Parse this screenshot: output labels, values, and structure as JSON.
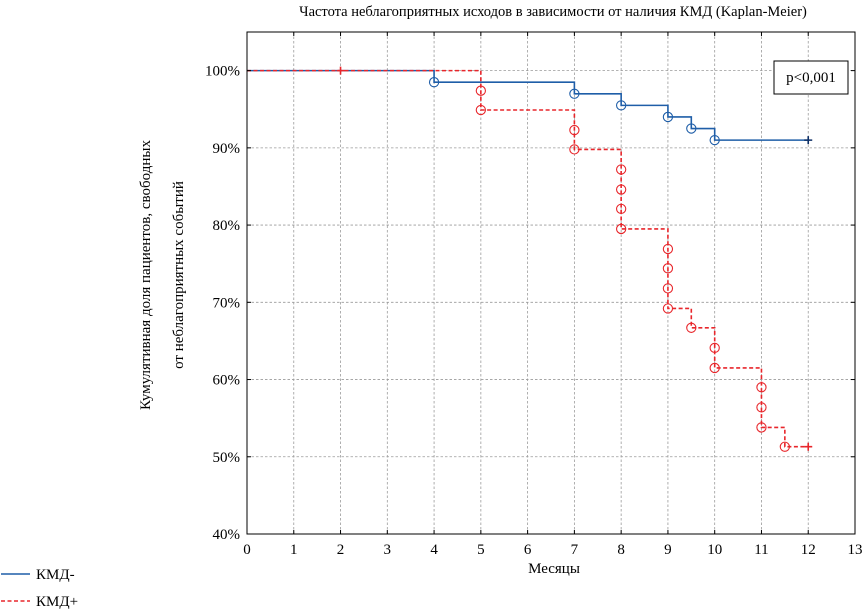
{
  "chart_data": {
    "type": "line",
    "title": "Частота неблагоприятных исходов в зависимости от наличия КМД (Kaplan-Meier)",
    "xlabel": "Месяцы",
    "ylabel_lines": [
      "Кумулятивная доля пациентов, свободных",
      "от неблагоприятных событий"
    ],
    "xlim": [
      0,
      13
    ],
    "ylim": [
      40,
      105
    ],
    "x_ticks": [
      0,
      1,
      2,
      3,
      4,
      5,
      6,
      7,
      8,
      9,
      10,
      11,
      12,
      13
    ],
    "y_ticks": [
      40,
      50,
      60,
      70,
      80,
      90,
      100
    ],
    "y_tick_labels": [
      "40%",
      "50%",
      "60%",
      "70%",
      "80%",
      "90%",
      "100%"
    ],
    "grid": true,
    "annotation": "p<0,001",
    "legend_position": "bottom-left",
    "series": [
      {
        "name": "КМД-",
        "color": "#1f5ea8",
        "dash": "solid",
        "steps": [
          [
            0,
            100
          ],
          [
            4,
            98.5
          ],
          [
            7,
            97
          ],
          [
            8,
            95.5
          ],
          [
            9,
            94
          ],
          [
            9.5,
            92.5
          ],
          [
            10,
            91
          ]
        ],
        "end_x": 12,
        "event_marks": [
          [
            4,
            98.5
          ],
          [
            7,
            97
          ],
          [
            8,
            95.5
          ],
          [
            9,
            94
          ],
          [
            9.5,
            92.5
          ],
          [
            10,
            91
          ]
        ],
        "censor_marks": [
          [
            12,
            91
          ]
        ]
      },
      {
        "name": "КМД+",
        "color": "#e8262b",
        "dash": "dashed",
        "steps": [
          [
            0,
            100
          ],
          [
            5,
            94.9
          ],
          [
            7,
            89.8
          ],
          [
            8,
            79.5
          ],
          [
            9,
            69.2
          ],
          [
            9.5,
            66.7
          ],
          [
            10,
            61.5
          ],
          [
            11,
            53.8
          ],
          [
            11.5,
            51.3
          ]
        ],
        "end_x": 12,
        "event_marks": [
          [
            5,
            97.4
          ],
          [
            5,
            94.9
          ],
          [
            7,
            92.3
          ],
          [
            7,
            89.8
          ],
          [
            8,
            87.2
          ],
          [
            8,
            84.6
          ],
          [
            8,
            82.1
          ],
          [
            8,
            79.5
          ],
          [
            9,
            76.9
          ],
          [
            9,
            74.4
          ],
          [
            9,
            71.8
          ],
          [
            9,
            69.2
          ],
          [
            9.5,
            66.7
          ],
          [
            10,
            64.1
          ],
          [
            10,
            61.5
          ],
          [
            11,
            59
          ],
          [
            11,
            56.4
          ],
          [
            11,
            53.8
          ],
          [
            11.5,
            51.3
          ]
        ],
        "censor_marks": [
          [
            2,
            100
          ],
          [
            12,
            51.3
          ]
        ]
      }
    ]
  }
}
